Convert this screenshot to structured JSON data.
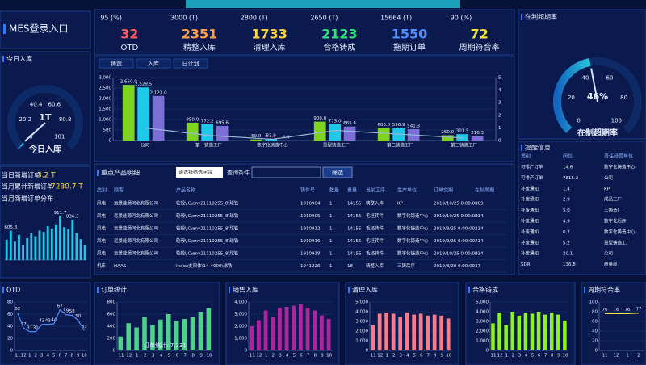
{
  "header": {
    "title": "MES登录入口"
  },
  "kpis": [
    {
      "target": "95 (%)",
      "value": 32,
      "label": "OTD",
      "color": "#ff5a5a"
    },
    {
      "target": "3000 (T)",
      "value": 2351,
      "label": "精整入库",
      "color": "#ff9d4d"
    },
    {
      "target": "2800 (T)",
      "value": 1733,
      "label": "清理入库",
      "color": "#ffd43b"
    },
    {
      "target": "2650 (T)",
      "value": 2123,
      "label": "合格铸成",
      "color": "#2ee37d"
    },
    {
      "target": "15664 (T)",
      "value": 1550,
      "label": "拖期订单",
      "color": "#4d8dff"
    },
    {
      "target": "90 (%)",
      "value": 72,
      "label": "周期符合率",
      "color": "#f4e23b"
    }
  ],
  "left": {
    "daily_label": "当日新增订单",
    "daily_value": "3.2 T",
    "monthly_label": "当月累计新增订单",
    "monthly_value": "7230.7 T"
  },
  "tabs": [
    "铸造",
    "入库",
    "日计划"
  ],
  "products": {
    "title": "重点产品明细",
    "select": "请选择筛选字段",
    "query_label": "查询条件",
    "button": "筛选",
    "columns": [
      "类别",
      "顾客",
      "产品名称",
      "铸件号",
      "数量",
      "重量",
      "当前工序",
      "生产单位",
      "订单交期",
      "在制周期"
    ],
    "rows": [
      [
        "风电",
        "远景能源河北有限公司",
        "轮毂\\JC\\env21110255_8\\球铁",
        "1910904",
        "1",
        "14155",
        "精整入库",
        "KP",
        "2019/10/25 0:00:00",
        "109"
      ],
      [
        "风电",
        "远景能源河北有限公司",
        "轮毂\\JC\\env21110255_8\\球铁",
        "1910905",
        "1",
        "14155",
        "毛坯转件",
        "数字化铸造中心",
        "2019/10/25 0:00:00",
        "214"
      ],
      [
        "风电",
        "远景能源河北有限公司",
        "轮毂\\JC\\env21110255_8\\球铁",
        "1910912",
        "1",
        "14155",
        "毛坯转件",
        "数字化铸造中心",
        "2019/9/25 0:00:00",
        "214"
      ],
      [
        "风电",
        "远景能源河北有限公司",
        "轮毂\\JC\\env21110255_8\\球铁",
        "1910916",
        "1",
        "14155",
        "毛坯转件",
        "数字化铸造中心",
        "2019/9/25 0:00:00",
        "214"
      ],
      [
        "风电",
        "远景能源河北有限公司",
        "轮毂\\JC\\env21110255_8\\球铁",
        "1910918",
        "1",
        "14155",
        "毛坯转件",
        "数字化铸造中心",
        "2019/10/25 0:00:00",
        "214"
      ],
      [
        "机床",
        "HAAS",
        "Index支架体\\14-4000\\球铁",
        "1941226",
        "1",
        "18",
        "精整入库",
        "三铸后序",
        "2019/8/20 0:00:00",
        "37"
      ]
    ]
  },
  "reminder": {
    "title": "提醒信息",
    "columns": [
      "类别",
      "阀位",
      "责任经营单位"
    ],
    "rows": [
      [
        "可排产订单",
        "14.6",
        "数字化铸造中心"
      ],
      [
        "可排产订单",
        "7815.2",
        "公司"
      ],
      [
        "补废通知",
        "1.4",
        "KP"
      ],
      [
        "补废通知",
        "2.9",
        "成品工厂"
      ],
      [
        "补废通知",
        "5.0",
        "三铸造厂"
      ],
      [
        "补废通知",
        "4.9",
        "数字化后序"
      ],
      [
        "补废通知",
        "0.7",
        "数字化铸造中心"
      ],
      [
        "补废通知",
        "5.2",
        "重型铸造工厂"
      ],
      [
        "补废通知",
        "20.1",
        "公司"
      ],
      [
        "SDR",
        "136.8",
        "质量部"
      ]
    ]
  },
  "chart_data": [
    {
      "type": "gauge",
      "title": "今日入库",
      "label": "今日入库",
      "value": 1,
      "value_label": "1T",
      "ylim": [
        0,
        101
      ],
      "yticks": [
        0,
        20.2,
        40.4,
        60.6,
        80.8,
        101
      ],
      "color": "#1e9be8"
    },
    {
      "type": "bar",
      "title": "当月新增订单分布",
      "color": "#1ec8e8",
      "ylim": [
        0,
        1000
      ],
      "values": [
        420,
        605.8,
        380,
        520,
        300,
        450,
        560,
        490,
        610,
        580,
        700,
        650,
        720,
        911.7,
        680,
        640,
        836.3,
        560,
        430,
        300
      ],
      "value_labels": [
        null,
        "605.8",
        null,
        null,
        null,
        null,
        null,
        null,
        null,
        null,
        null,
        null,
        null,
        "911.7",
        null,
        null,
        "836.3",
        null,
        null,
        null
      ]
    },
    {
      "type": "bar",
      "categories": [
        "公司",
        "第一铸造工厂",
        "数字化铸造中心",
        "重型铸造工厂",
        "第二铸造工厂",
        "第三铸造工厂"
      ],
      "ylim": [
        0,
        3000
      ],
      "yticks": [
        0,
        500,
        {
          "value": 1000,
          "label": "1,000"
        },
        {
          "value": 1500,
          "label": "1,500"
        },
        {
          "value": 2000,
          "label": "2,000"
        },
        {
          "value": 2500,
          "label": "2,500"
        },
        {
          "value": 3000,
          "label": "3,000"
        }
      ],
      "y2lim": [
        0,
        5
      ],
      "y2ticks": [
        0,
        1,
        2,
        3,
        4,
        5
      ],
      "series": [
        {
          "color": "#7ed321",
          "values": [
            2650,
            850,
            50,
            900,
            600,
            250
          ],
          "value_labels": [
            "2,650.0",
            "850.0",
            "50.0",
            "900.0",
            "600.0",
            "250.0"
          ]
        },
        {
          "color": "#1ec8e8",
          "values": [
            2529.5,
            772.2,
            83.9,
            775,
            596.9,
            301.5
          ],
          "value_labels": [
            "2,529.5",
            "772.2",
            "83.9",
            "775.0",
            "596.9",
            "301.5"
          ]
        },
        {
          "color": "#7b6fd6",
          "values": [
            2123,
            695.6,
            4.4,
            665.4,
            541.3,
            216.3
          ],
          "value_labels": [
            "2,123.0",
            "695.6",
            "4.4",
            "665.4",
            "541.3",
            "216.3"
          ]
        },
        {
          "type": "line",
          "axis": "y2",
          "color": "#9fb4d8",
          "values": [
            1,
            0.4,
            0.1,
            0.8,
            0.5,
            0.2
          ]
        }
      ]
    },
    {
      "type": "gauge",
      "title": "在制超期率",
      "label": "在制超期率",
      "value": 46,
      "value_label": "46%",
      "ylim": [
        0,
        100
      ],
      "yticks": [
        0,
        20,
        40,
        60,
        80,
        100
      ],
      "color": "#1e9be8"
    },
    {
      "type": "line",
      "title": "OTD",
      "color": "#4d8dff",
      "categories": [
        "11",
        "12",
        "1",
        "2",
        "3",
        "4",
        "5",
        "6",
        "7",
        "8",
        "9",
        "10"
      ],
      "values": [
        62,
        37,
        31,
        31,
        43,
        43,
        44,
        67,
        59,
        58,
        50,
        33
      ],
      "ylim": [
        0,
        80
      ],
      "yticks": [
        0,
        20,
        40,
        60,
        80
      ]
    },
    {
      "type": "bar",
      "title": "订单统计",
      "annotation": "订单统计: 7,231",
      "color": "#4fd18b",
      "categories": [
        "11",
        "12",
        "1",
        "2",
        "3",
        "4",
        "5",
        "6",
        "7",
        "8",
        "9",
        "10"
      ],
      "values": [
        230,
        450,
        380,
        560,
        420,
        510,
        600,
        480,
        520,
        560,
        640,
        700
      ],
      "ylim": [
        0,
        800
      ],
      "yticks": [
        0,
        200,
        400,
        600,
        800
      ]
    },
    {
      "type": "bar",
      "title": "销售入库",
      "color": "#b0239e",
      "categories": [
        "11",
        "12",
        "1",
        "2",
        "3",
        "4",
        "5",
        "6",
        "7",
        "8",
        "9",
        "10"
      ],
      "values": [
        2000,
        2500,
        3300,
        2800,
        3500,
        3600,
        3700,
        3800,
        3500,
        3300,
        2900,
        2600
      ],
      "ylim": [
        0,
        4000
      ],
      "yticks": [
        0,
        {
          "value": 1000,
          "label": "1,000"
        },
        {
          "value": 2000,
          "label": "2,000"
        },
        {
          "value": 3000,
          "label": "3,000"
        },
        {
          "value": 4000,
          "label": "4,000"
        }
      ]
    },
    {
      "type": "bar",
      "title": "清理入库",
      "color": "#f47c8c",
      "categories": [
        "11",
        "12",
        "1",
        "2",
        "3",
        "4",
        "5",
        "6",
        "7",
        "8",
        "9",
        "10"
      ],
      "values": [
        2600,
        3800,
        3900,
        3800,
        3500,
        3900,
        3700,
        3800,
        3600,
        3700,
        3600,
        3300
      ],
      "ylim": [
        0,
        5000
      ],
      "yticks": [
        0,
        {
          "value": 1000,
          "label": "1,000"
        },
        {
          "value": 2000,
          "label": "2,000"
        },
        {
          "value": 3000,
          "label": "3,000"
        },
        {
          "value": 4000,
          "label": "4,000"
        },
        {
          "value": 5000,
          "label": "5,000"
        }
      ]
    },
    {
      "type": "bar",
      "title": "合格铸成",
      "color": "#8ef21c",
      "categories": [
        "11",
        "12",
        "1",
        "2",
        "3",
        "4",
        "5",
        "6",
        "7",
        "8",
        "9",
        "10"
      ],
      "values": [
        2800,
        3900,
        2600,
        4000,
        3600,
        3900,
        3800,
        4000,
        3700,
        3900,
        3700,
        3100
      ],
      "ylim": [
        0,
        5000
      ],
      "yticks": [
        0,
        {
          "value": 1000,
          "label": "1,000"
        },
        {
          "value": 2000,
          "label": "2,000"
        },
        {
          "value": 3000,
          "label": "3,000"
        },
        {
          "value": 4000,
          "label": "4,000"
        },
        {
          "value": 5000,
          "label": "5,000"
        }
      ]
    },
    {
      "type": "line",
      "title": "周期符合率",
      "color": "#f4e23b",
      "categories": [
        "11",
        "12",
        "1",
        "2"
      ],
      "values": [
        76,
        76,
        76,
        77
      ],
      "ylim": [
        0,
        100
      ],
      "yticks": [
        0,
        20,
        40,
        60,
        80,
        100
      ]
    }
  ]
}
